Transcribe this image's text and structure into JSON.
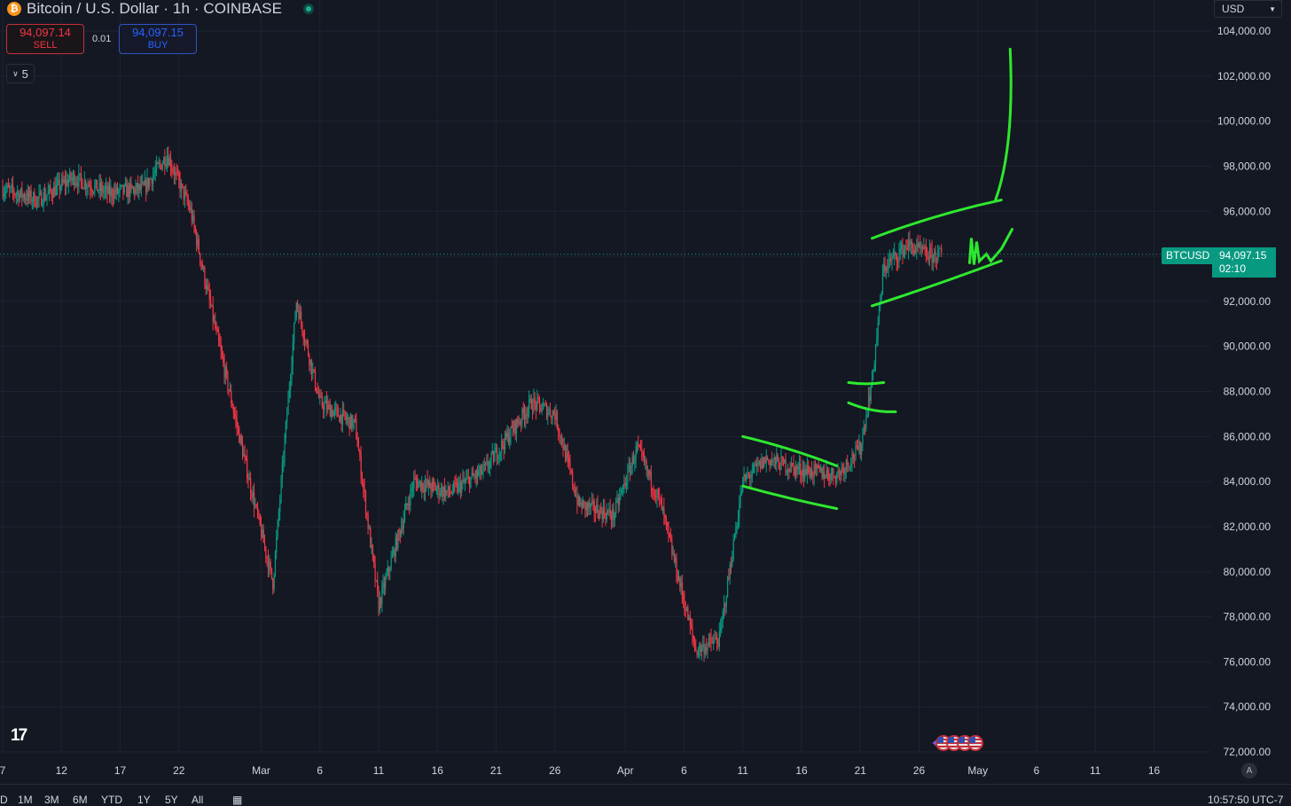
{
  "header": {
    "symbol_title": "Bitcoin / U.S. Dollar · 1h · COINBASE",
    "icon": "bitcoin-icon",
    "live_status": "market-open"
  },
  "trade": {
    "sell_price": "94,097.14",
    "sell_label": "SELL",
    "spread": "0.01",
    "buy_price": "94,097.15",
    "buy_label": "BUY"
  },
  "indicators_toggle": {
    "count": "5",
    "icon": "chevron-down-icon"
  },
  "currency": {
    "value": "USD",
    "icon": "chevron-down-icon"
  },
  "last_price": {
    "symbol": "BTCUSD",
    "price": "94,097.15",
    "countdown": "02:10"
  },
  "colors": {
    "background": "#141823",
    "up": "#089981",
    "down": "#f23645",
    "drawing": "#2ee82e",
    "grid": "#1f2330"
  },
  "logo": {
    "text": "17",
    "icon": "tradingview-logo"
  },
  "auto_scale": {
    "label": "A"
  },
  "bottom_bar": {
    "ranges": [
      "D",
      "1M",
      "3M",
      "6M",
      "YTD",
      "1Y",
      "5Y",
      "All"
    ],
    "calendar_icon": "calendar-icon",
    "clock": "10:57:50 UTC-7"
  },
  "chart_data": {
    "type": "candlestick",
    "title": "Bitcoin / U.S. Dollar · 1h · COINBASE",
    "y_ticks": [
      "104,000.00",
      "102,000.00",
      "100,000.00",
      "98,000.00",
      "96,000.00",
      "94,000.00",
      "92,000.00",
      "90,000.00",
      "88,000.00",
      "86,000.00",
      "84,000.00",
      "82,000.00",
      "80,000.00",
      "78,000.00",
      "76,000.00",
      "74,000.00",
      "72,000.00"
    ],
    "x_ticks": [
      "7",
      "12",
      "17",
      "22",
      "Mar",
      "6",
      "11",
      "16",
      "21",
      "26",
      "Apr",
      "6",
      "11",
      "16",
      "21",
      "26",
      "May",
      "6",
      "11",
      "16"
    ],
    "ylim": [
      72000,
      104000
    ],
    "price_path_dates": [
      "Feb 7",
      "Feb 10",
      "Feb 13",
      "Feb 16",
      "Feb 19",
      "Feb 21",
      "Feb 23",
      "Feb 25",
      "Feb 28",
      "Mar 2",
      "Mar 4",
      "Mar 6",
      "Mar 9",
      "Mar 11",
      "Mar 14",
      "Mar 17",
      "Mar 20",
      "Mar 24",
      "Mar 26",
      "Mar 28",
      "Mar 31",
      "Apr 2",
      "Apr 4",
      "Apr 7",
      "Apr 9",
      "Apr 11",
      "Apr 13",
      "Apr 16",
      "Apr 19",
      "Apr 21",
      "Apr 22",
      "Apr 23",
      "Apr 25",
      "Apr 27",
      "Apr 28"
    ],
    "price_path": [
      97000,
      96500,
      97500,
      96800,
      97000,
      98500,
      96000,
      91000,
      84000,
      79500,
      92000,
      87500,
      86500,
      78500,
      84000,
      83500,
      84500,
      87500,
      87000,
      83000,
      82500,
      85500,
      83000,
      76500,
      77000,
      84000,
      85000,
      84500,
      84300,
      85500,
      88500,
      93500,
      94500,
      94000,
      94100
    ],
    "annotations": [
      {
        "type": "rising-wedge",
        "from": "Apr 22",
        "to": "May 3",
        "lower": [
          91800,
          93800
        ],
        "upper": [
          94800,
          96500
        ]
      },
      {
        "type": "projection",
        "from": "May 1",
        "to": "May 3",
        "start": 96500,
        "end": 103200
      },
      {
        "type": "channel",
        "from": "Apr 11",
        "to": "Apr 19",
        "upper": [
          86000,
          84700
        ],
        "lower": [
          83800,
          82800
        ]
      },
      {
        "type": "level",
        "from": "Apr 20",
        "to": "Apr 23",
        "value": 88400
      },
      {
        "type": "level",
        "from": "Apr 20",
        "to": "Apr 24",
        "value": 87500
      }
    ]
  }
}
